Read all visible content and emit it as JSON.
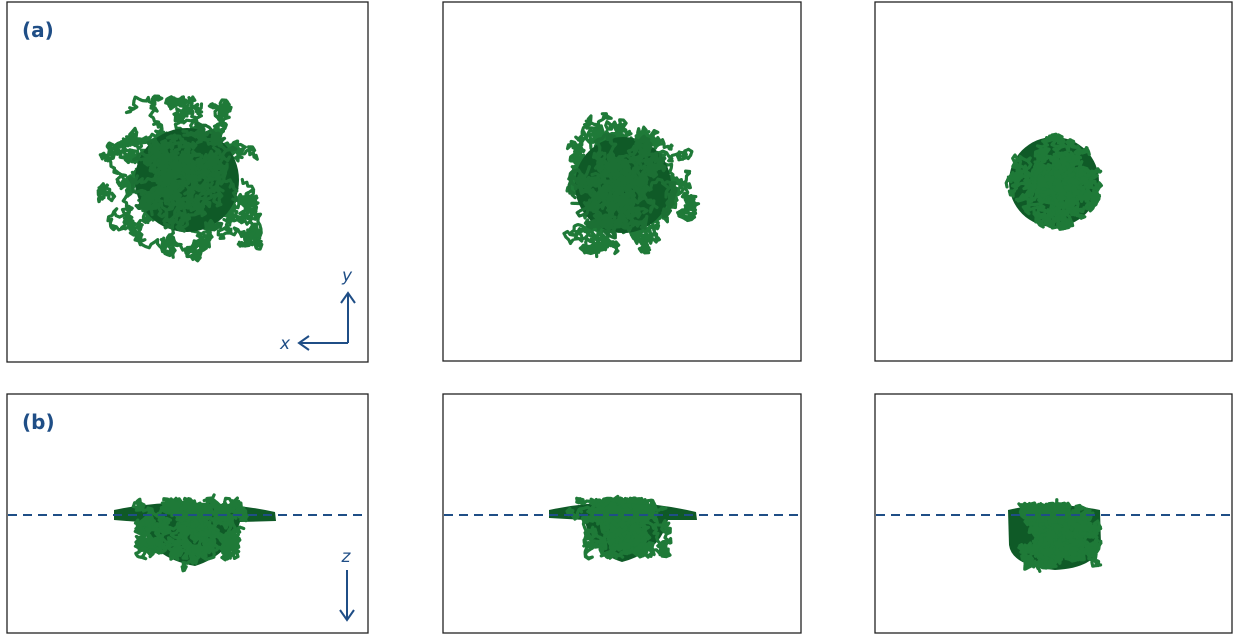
{
  "panels": [
    {
      "label": "(a)"
    },
    {
      "label": "(b)"
    }
  ],
  "axes": {
    "x": "x",
    "y": "y",
    "z": "z"
  }
}
